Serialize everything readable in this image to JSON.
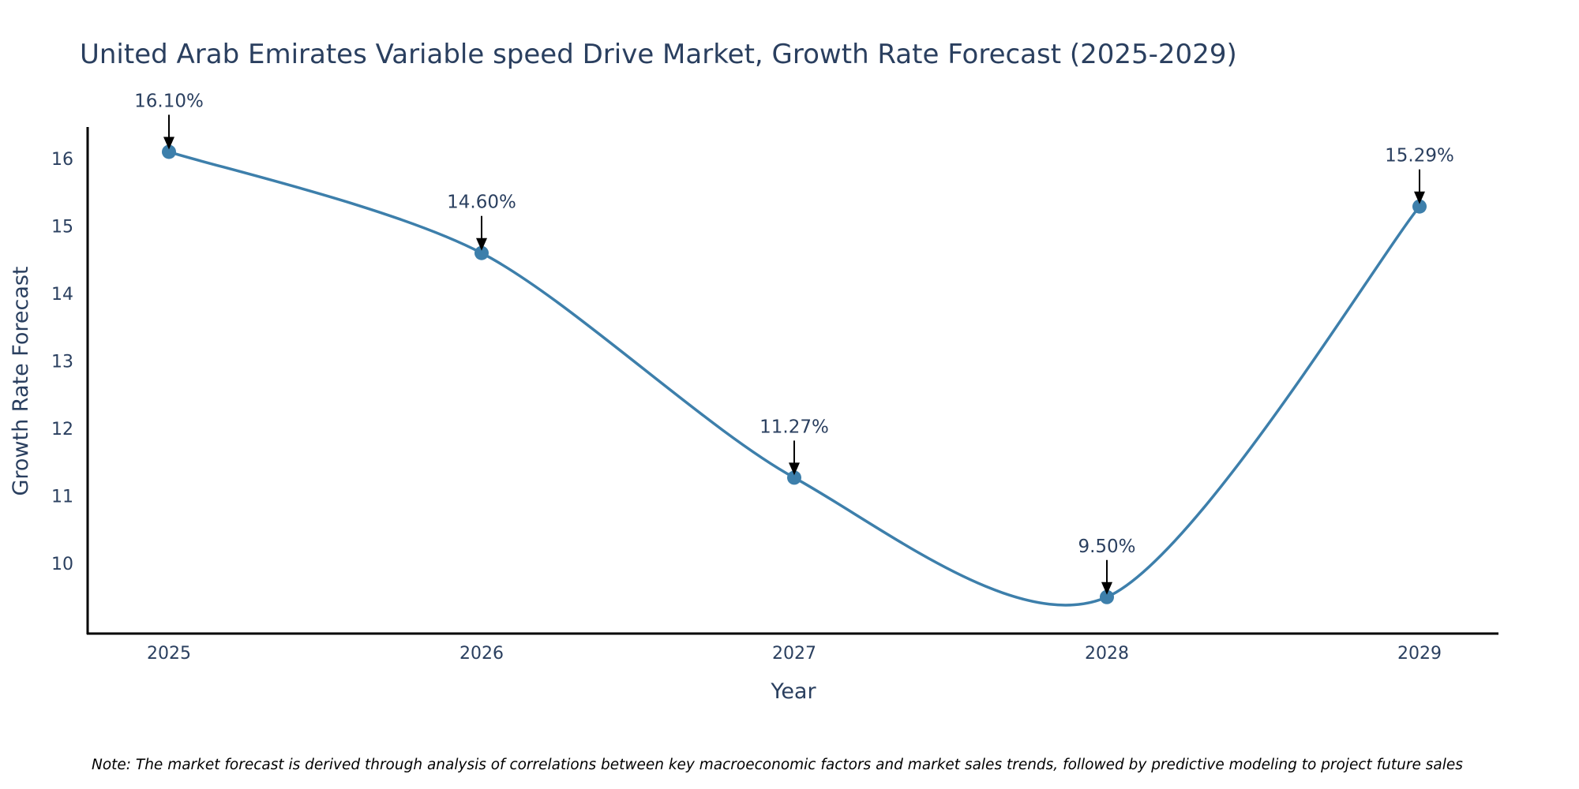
{
  "chart_data": {
    "type": "line",
    "title": "United Arab Emirates Variable speed Drive Market, Growth Rate Forecast (2025-2029)",
    "xlabel": "Year",
    "ylabel": "Growth Rate Forecast",
    "x": [
      "2025",
      "2026",
      "2027",
      "2028",
      "2029"
    ],
    "values": [
      16.1,
      14.6,
      11.27,
      9.5,
      15.29
    ],
    "data_labels": [
      "16.10%",
      "14.60%",
      "11.27%",
      "9.50%",
      "15.29%"
    ],
    "y_ticks": [
      "10",
      "11",
      "12",
      "13",
      "14",
      "15",
      "16"
    ],
    "ylim": [
      9.0,
      16.6
    ],
    "line_shape": "spline",
    "grid": false,
    "series_color": "#3d7fab",
    "note": "Note: The market forecast is derived through analysis of correlations between key macroeconomic factors and market sales trends, followed by predictive modeling to project future sales"
  }
}
